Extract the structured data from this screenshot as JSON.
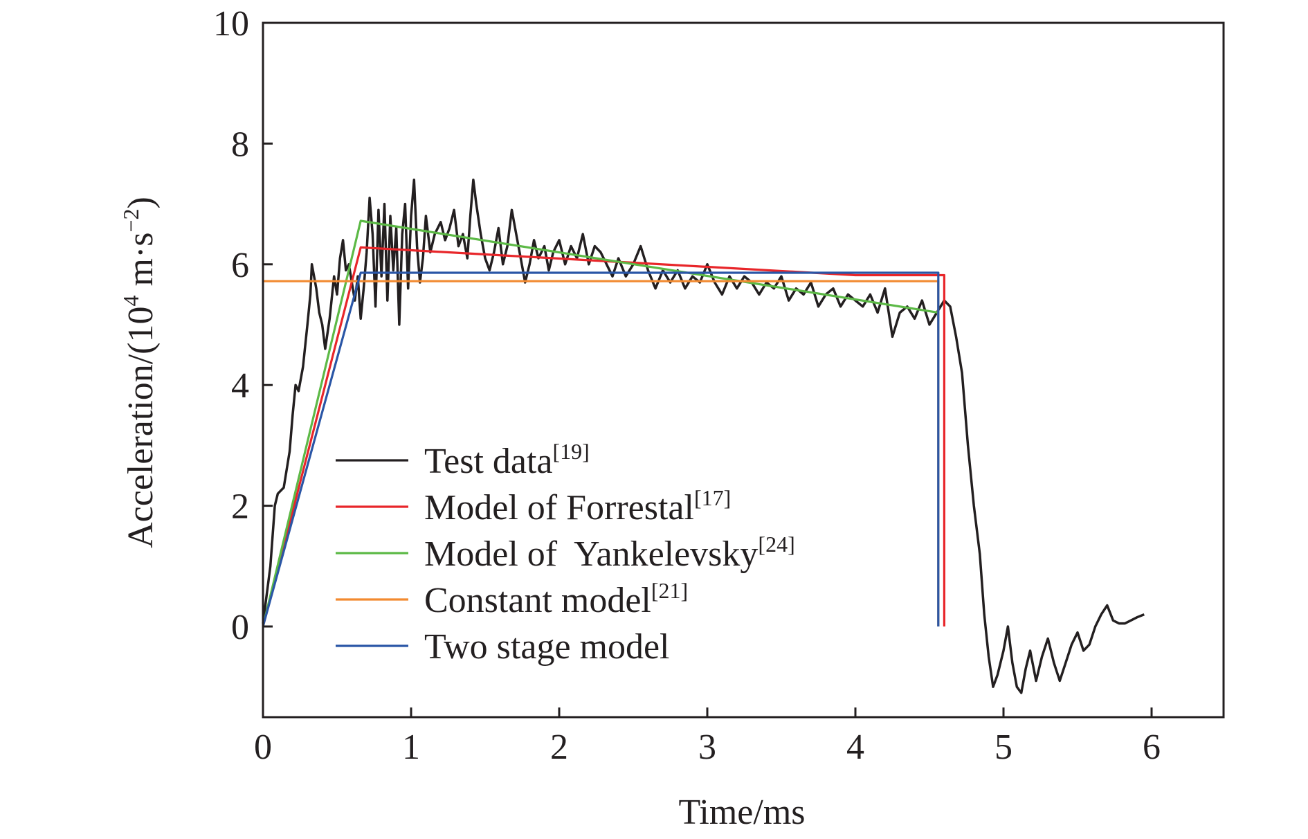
{
  "chart_data": {
    "type": "line",
    "xlabel": "Time/ms",
    "ylabel": {
      "prefix": "Acceleration/(10",
      "exp": "4",
      "middle": " m·s",
      "unit_exp": "−2",
      "suffix": ")"
    },
    "xlim": [
      0,
      6.3
    ],
    "ylim": [
      -1.5,
      10
    ],
    "xticks": [
      0,
      1,
      2,
      3,
      4,
      5,
      6
    ],
    "yticks": [
      0,
      2,
      4,
      6,
      8,
      10
    ],
    "grid": false,
    "legend_position": "lower-left",
    "series": [
      {
        "name": "Test data",
        "ref": "[19]",
        "color": "#231f20",
        "points": [
          [
            0,
            0.05
          ],
          [
            0.05,
            1.0
          ],
          [
            0.08,
            2.0
          ],
          [
            0.1,
            2.2
          ],
          [
            0.14,
            2.3
          ],
          [
            0.18,
            2.9
          ],
          [
            0.2,
            3.5
          ],
          [
            0.22,
            4.0
          ],
          [
            0.24,
            3.9
          ],
          [
            0.27,
            4.3
          ],
          [
            0.3,
            5.0
          ],
          [
            0.32,
            5.5
          ],
          [
            0.33,
            6.0
          ],
          [
            0.36,
            5.6
          ],
          [
            0.38,
            5.2
          ],
          [
            0.4,
            5.0
          ],
          [
            0.42,
            4.6
          ],
          [
            0.45,
            5.1
          ],
          [
            0.48,
            5.8
          ],
          [
            0.5,
            5.5
          ],
          [
            0.52,
            6.1
          ],
          [
            0.54,
            6.4
          ],
          [
            0.56,
            5.9
          ],
          [
            0.58,
            6.0
          ],
          [
            0.6,
            5.7
          ],
          [
            0.62,
            5.4
          ],
          [
            0.64,
            5.8
          ],
          [
            0.66,
            5.1
          ],
          [
            0.68,
            5.6
          ],
          [
            0.7,
            6.2
          ],
          [
            0.72,
            7.1
          ],
          [
            0.74,
            6.5
          ],
          [
            0.76,
            5.3
          ],
          [
            0.78,
            6.9
          ],
          [
            0.8,
            5.8
          ],
          [
            0.82,
            7.0
          ],
          [
            0.84,
            5.4
          ],
          [
            0.86,
            6.8
          ],
          [
            0.88,
            5.9
          ],
          [
            0.9,
            6.6
          ],
          [
            0.92,
            5.0
          ],
          [
            0.94,
            6.5
          ],
          [
            0.96,
            7.0
          ],
          [
            0.98,
            5.6
          ],
          [
            1.0,
            6.8
          ],
          [
            1.02,
            7.4
          ],
          [
            1.04,
            6.3
          ],
          [
            1.06,
            5.7
          ],
          [
            1.08,
            6.1
          ],
          [
            1.1,
            6.8
          ],
          [
            1.13,
            6.2
          ],
          [
            1.16,
            6.5
          ],
          [
            1.2,
            6.7
          ],
          [
            1.23,
            6.4
          ],
          [
            1.26,
            6.6
          ],
          [
            1.29,
            6.9
          ],
          [
            1.32,
            6.3
          ],
          [
            1.35,
            6.5
          ],
          [
            1.38,
            6.1
          ],
          [
            1.4,
            6.8
          ],
          [
            1.42,
            7.4
          ],
          [
            1.44,
            7.0
          ],
          [
            1.47,
            6.5
          ],
          [
            1.5,
            6.1
          ],
          [
            1.53,
            5.9
          ],
          [
            1.56,
            6.2
          ],
          [
            1.59,
            6.6
          ],
          [
            1.62,
            6.0
          ],
          [
            1.65,
            6.3
          ],
          [
            1.68,
            6.9
          ],
          [
            1.71,
            6.5
          ],
          [
            1.74,
            6.1
          ],
          [
            1.77,
            5.7
          ],
          [
            1.8,
            6.0
          ],
          [
            1.83,
            6.4
          ],
          [
            1.86,
            6.1
          ],
          [
            1.9,
            6.3
          ],
          [
            1.93,
            5.9
          ],
          [
            1.96,
            6.2
          ],
          [
            2.0,
            6.4
          ],
          [
            2.04,
            6.0
          ],
          [
            2.08,
            6.3
          ],
          [
            2.12,
            6.1
          ],
          [
            2.16,
            6.5
          ],
          [
            2.2,
            6.0
          ],
          [
            2.24,
            6.3
          ],
          [
            2.28,
            6.2
          ],
          [
            2.32,
            6.0
          ],
          [
            2.36,
            5.8
          ],
          [
            2.4,
            6.1
          ],
          [
            2.45,
            5.8
          ],
          [
            2.5,
            6.0
          ],
          [
            2.55,
            6.3
          ],
          [
            2.6,
            5.9
          ],
          [
            2.65,
            5.6
          ],
          [
            2.7,
            5.9
          ],
          [
            2.75,
            5.7
          ],
          [
            2.8,
            5.9
          ],
          [
            2.85,
            5.6
          ],
          [
            2.9,
            5.8
          ],
          [
            2.95,
            5.7
          ],
          [
            3.0,
            6.0
          ],
          [
            3.05,
            5.7
          ],
          [
            3.1,
            5.5
          ],
          [
            3.15,
            5.8
          ],
          [
            3.2,
            5.6
          ],
          [
            3.25,
            5.8
          ],
          [
            3.3,
            5.7
          ],
          [
            3.35,
            5.5
          ],
          [
            3.4,
            5.7
          ],
          [
            3.45,
            5.6
          ],
          [
            3.5,
            5.8
          ],
          [
            3.55,
            5.4
          ],
          [
            3.6,
            5.6
          ],
          [
            3.65,
            5.5
          ],
          [
            3.7,
            5.7
          ],
          [
            3.75,
            5.3
          ],
          [
            3.8,
            5.5
          ],
          [
            3.85,
            5.6
          ],
          [
            3.9,
            5.3
          ],
          [
            3.95,
            5.5
          ],
          [
            4.0,
            5.4
          ],
          [
            4.05,
            5.3
          ],
          [
            4.1,
            5.5
          ],
          [
            4.15,
            5.2
          ],
          [
            4.2,
            5.6
          ],
          [
            4.25,
            4.8
          ],
          [
            4.3,
            5.2
          ],
          [
            4.35,
            5.3
          ],
          [
            4.4,
            5.1
          ],
          [
            4.45,
            5.4
          ],
          [
            4.5,
            5.0
          ],
          [
            4.55,
            5.2
          ],
          [
            4.6,
            5.4
          ],
          [
            4.64,
            5.3
          ],
          [
            4.68,
            4.8
          ],
          [
            4.72,
            4.2
          ],
          [
            4.76,
            3.0
          ],
          [
            4.8,
            2.0
          ],
          [
            4.84,
            1.2
          ],
          [
            4.87,
            0.2
          ],
          [
            4.9,
            -0.5
          ],
          [
            4.93,
            -1.0
          ],
          [
            4.96,
            -0.8
          ],
          [
            5.0,
            -0.4
          ],
          [
            5.03,
            0.0
          ],
          [
            5.06,
            -0.6
          ],
          [
            5.09,
            -1.0
          ],
          [
            5.12,
            -1.1
          ],
          [
            5.15,
            -0.7
          ],
          [
            5.18,
            -0.4
          ],
          [
            5.22,
            -0.9
          ],
          [
            5.26,
            -0.5
          ],
          [
            5.3,
            -0.2
          ],
          [
            5.34,
            -0.6
          ],
          [
            5.38,
            -0.9
          ],
          [
            5.42,
            -0.6
          ],
          [
            5.46,
            -0.3
          ],
          [
            5.5,
            -0.1
          ],
          [
            5.54,
            -0.4
          ],
          [
            5.58,
            -0.3
          ],
          [
            5.62,
            0.0
          ],
          [
            5.66,
            0.2
          ],
          [
            5.7,
            0.35
          ],
          [
            5.74,
            0.1
          ],
          [
            5.78,
            0.05
          ],
          [
            5.82,
            0.05
          ],
          [
            5.86,
            0.1
          ],
          [
            5.9,
            0.15
          ],
          [
            5.95,
            0.2
          ]
        ]
      },
      {
        "name": "Model of Forrestal",
        "ref": "[17]",
        "color": "#e8262a",
        "points": [
          [
            0,
            0
          ],
          [
            0.66,
            6.28
          ],
          [
            4.0,
            5.82
          ],
          [
            4.6,
            5.82
          ],
          [
            4.6,
            0.0
          ]
        ]
      },
      {
        "name": "Model of  Yankelevsky",
        "ref": "[24]",
        "color": "#5cb946",
        "points": [
          [
            0,
            0
          ],
          [
            0.66,
            6.72
          ],
          [
            4.56,
            5.2
          ]
        ]
      },
      {
        "name": "Constant model",
        "ref": "[21]",
        "color": "#f28a30",
        "points": [
          [
            0,
            5.72
          ],
          [
            4.56,
            5.72
          ],
          [
            4.56,
            0.0
          ]
        ]
      },
      {
        "name": "Two stage model",
        "ref": "",
        "color": "#2a56a6",
        "points": [
          [
            0,
            0
          ],
          [
            0.66,
            5.86
          ],
          [
            4.56,
            5.86
          ],
          [
            4.56,
            0.0
          ]
        ]
      }
    ]
  }
}
